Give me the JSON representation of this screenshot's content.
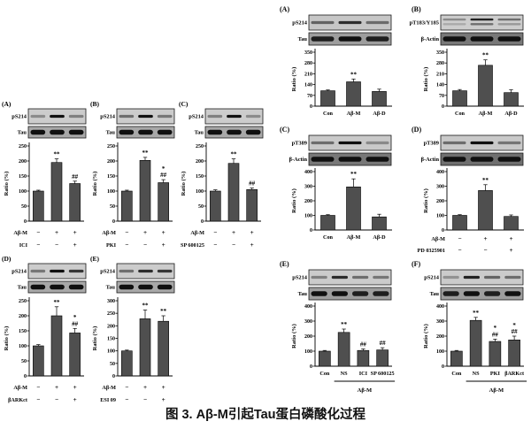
{
  "figure": {
    "caption": "图 3. Aβ-M引起Tau蛋白磷酸化过程"
  },
  "colors": {
    "bar": "#4f4f4f",
    "band": "#101010",
    "axis": "#000000"
  },
  "chart_data": [
    {
      "id": "left-A",
      "block": "left",
      "size": "L",
      "type": "bar",
      "label": "(A)",
      "blots": [
        {
          "name": "pS214",
          "bg": "#cccccc",
          "bands": [
            0.35,
            1,
            0.4
          ],
          "thick": false
        },
        {
          "name": "Tau",
          "bg": "#a8a8a8",
          "bands": [
            1,
            1,
            1
          ],
          "thick": true
        }
      ],
      "ylabel": "Ratio (%)",
      "ymax": 250,
      "ystep": 50,
      "values": [
        100,
        195,
        125
      ],
      "errors": [
        3,
        12,
        8
      ],
      "annotations": [
        [],
        [
          "**"
        ],
        [
          "##"
        ]
      ],
      "treatments": [
        {
          "label": "Aβ-M",
          "symbols": [
            "−",
            "+",
            "+"
          ]
        },
        {
          "label": "ICI",
          "symbols": [
            "−",
            "−",
            "+"
          ]
        }
      ]
    },
    {
      "id": "left-B",
      "block": "left",
      "size": "L",
      "type": "bar",
      "label": "(B)",
      "blots": [
        {
          "name": "pS214",
          "bg": "#cccccc",
          "bands": [
            0.5,
            1,
            0.45
          ],
          "thick": false
        },
        {
          "name": "Tau",
          "bg": "#a8a8a8",
          "bands": [
            1,
            1,
            1
          ],
          "thick": true
        }
      ],
      "ylabel": "Ratio (%)",
      "ymax": 250,
      "ystep": 50,
      "values": [
        100,
        202,
        128
      ],
      "errors": [
        3,
        10,
        10
      ],
      "annotations": [
        [],
        [
          "**"
        ],
        [
          "*",
          "##"
        ]
      ],
      "treatments": [
        {
          "label": "Aβ-M",
          "symbols": [
            "−",
            "+",
            "+"
          ]
        },
        {
          "label": "PKI",
          "symbols": [
            "−",
            "−",
            "+"
          ]
        }
      ]
    },
    {
      "id": "left-C",
      "block": "left",
      "size": "L",
      "type": "bar",
      "label": "(C)",
      "blots": [
        {
          "name": "pS214",
          "bg": "#cccccc",
          "bands": [
            0.4,
            1,
            0.35
          ],
          "thick": false
        },
        {
          "name": "Tau",
          "bg": "#a8a8a8",
          "bands": [
            1,
            1,
            1
          ],
          "thick": true
        }
      ],
      "ylabel": "Ratio (%)",
      "ymax": 250,
      "ystep": 50,
      "values": [
        100,
        192,
        105
      ],
      "errors": [
        4,
        15,
        5
      ],
      "annotations": [
        [],
        [
          "**"
        ],
        [
          "##"
        ]
      ],
      "treatments": [
        {
          "label": "Aβ-M",
          "symbols": [
            "−",
            "+",
            "+"
          ]
        },
        {
          "label": "SP 600125",
          "symbols": [
            "−",
            "−",
            "+"
          ]
        }
      ]
    },
    {
      "id": "left-D",
      "block": "left",
      "size": "L",
      "type": "bar",
      "label": "(D)",
      "blots": [
        {
          "name": "pS214",
          "bg": "#cccccc",
          "bands": [
            0.45,
            1,
            0.8
          ],
          "thick": false
        },
        {
          "name": "Tau",
          "bg": "#a8a8a8",
          "bands": [
            1,
            1,
            1
          ],
          "thick": true
        }
      ],
      "ylabel": "Ratio (%)",
      "ymax": 250,
      "ystep": 50,
      "values": [
        100,
        200,
        143
      ],
      "errors": [
        4,
        30,
        15
      ],
      "annotations": [
        [],
        [
          "**"
        ],
        [
          "*",
          "##"
        ]
      ],
      "treatments": [
        {
          "label": "Aβ-M",
          "symbols": [
            "−",
            "+",
            "+"
          ]
        },
        {
          "label": "βARKct",
          "symbols": [
            "−",
            "−",
            "+"
          ]
        }
      ]
    },
    {
      "id": "left-E",
      "block": "left",
      "size": "L",
      "type": "bar",
      "label": "(E)",
      "blots": [
        {
          "name": "pS214",
          "bg": "#cccccc",
          "bands": [
            0.5,
            0.85,
            0.8
          ],
          "thick": false
        },
        {
          "name": "Tau",
          "bg": "#a8a8a8",
          "bands": [
            1,
            1,
            1
          ],
          "thick": true
        }
      ],
      "ylabel": "Ratio (%)",
      "ymax": 300,
      "ystep": 50,
      "values": [
        100,
        228,
        218
      ],
      "errors": [
        3,
        35,
        22
      ],
      "annotations": [
        [],
        [
          "**"
        ],
        [
          "**"
        ]
      ],
      "treatments": [
        {
          "label": "Aβ-M",
          "symbols": [
            "−",
            "+",
            "+"
          ]
        },
        {
          "label": "ESI 09",
          "symbols": [
            "−",
            "−",
            "+"
          ]
        }
      ]
    },
    {
      "id": "right-A",
      "block": "right",
      "size": "R1",
      "type": "bar",
      "label": "(A)",
      "blots": [
        {
          "name": "pS214",
          "bg": "#c6c6c6",
          "bands": [
            0.55,
            0.85,
            0.5
          ],
          "thick": false
        },
        {
          "name": "Tau",
          "bg": "#9e9e9e",
          "bands": [
            0.9,
            1,
            0.9
          ],
          "thick": true
        }
      ],
      "ylabel": "Ratio (%)",
      "ymax": 350,
      "ystep": 70,
      "categories": [
        "Con",
        "Aβ-M",
        "Aβ-D"
      ],
      "values": [
        100,
        158,
        95
      ],
      "errors": [
        5,
        18,
        15
      ],
      "annotations": [
        [],
        [
          "**"
        ],
        []
      ]
    },
    {
      "id": "right-B",
      "block": "right",
      "size": "R1",
      "type": "bar",
      "label": "(B)",
      "blots": [
        {
          "name": "pT183/Y185",
          "bg": "#cdcdcd",
          "bands": [
            0.35,
            0.9,
            0.5
          ],
          "thick": false,
          "double": true
        },
        {
          "name": "β-Actin",
          "bg": "#787878",
          "bands": [
            1,
            1,
            1
          ],
          "thick": true
        }
      ],
      "ylabel": "Ratio (%)",
      "ymax": 350,
      "ystep": 70,
      "categories": [
        "Con",
        "Aβ-M",
        "Aβ-D"
      ],
      "values": [
        100,
        265,
        88
      ],
      "errors": [
        8,
        35,
        18
      ],
      "annotations": [
        [],
        [
          "**"
        ],
        []
      ]
    },
    {
      "id": "right-C",
      "block": "right",
      "size": "R2",
      "type": "bar",
      "label": "(C)",
      "blots": [
        {
          "name": "pT389",
          "bg": "#c9c9c9",
          "bands": [
            0.5,
            1,
            0.35
          ],
          "thick": false
        },
        {
          "name": "β-Actin",
          "bg": "#787878",
          "bands": [
            1,
            1,
            1
          ],
          "thick": true
        }
      ],
      "ylabel": "Ratio (%)",
      "ymax": 400,
      "ystep": 100,
      "categories": [
        "Con",
        "Aβ-M",
        "Aβ-D"
      ],
      "values": [
        100,
        295,
        90
      ],
      "errors": [
        5,
        55,
        18
      ],
      "annotations": [
        [],
        [
          "**"
        ],
        []
      ]
    },
    {
      "id": "right-D",
      "block": "right",
      "size": "R2",
      "type": "bar",
      "label": "(D)",
      "blots": [
        {
          "name": "pT389",
          "bg": "#c9c9c9",
          "bands": [
            0.5,
            1,
            0.45
          ],
          "thick": false
        },
        {
          "name": "β-Actin",
          "bg": "#6f6f6f",
          "bands": [
            1,
            1,
            1
          ],
          "thick": true
        }
      ],
      "ylabel": "Ratio (%)",
      "ymax": 400,
      "ystep": 100,
      "values": [
        100,
        270,
        93
      ],
      "errors": [
        5,
        40,
        10
      ],
      "annotations": [
        [],
        [
          "**"
        ],
        []
      ],
      "treatments": [
        {
          "label": "Aβ-M",
          "symbols": [
            "−",
            "+",
            "+"
          ]
        },
        {
          "label": "PD 0325901",
          "symbols": [
            "−",
            "−",
            "+"
          ]
        }
      ]
    },
    {
      "id": "right-E",
      "block": "right",
      "size": "R3",
      "type": "bar",
      "label": "(E)",
      "blots": [
        {
          "name": "pS214",
          "bg": "#cbcbcb",
          "bands": [
            0.4,
            0.85,
            0.5,
            0.45
          ],
          "thick": false
        },
        {
          "name": "Tau",
          "bg": "#9e9e9e",
          "bands": [
            1,
            1,
            0.9,
            0.9
          ],
          "thick": true
        }
      ],
      "ylabel": "Ratio (%)",
      "ymax": 400,
      "ystep": 100,
      "categories": [
        "Con",
        "NS",
        "ICI",
        "SP 600125"
      ],
      "values": [
        100,
        225,
        105,
        108
      ],
      "errors": [
        5,
        22,
        10,
        15
      ],
      "annotations": [
        [],
        [
          "**"
        ],
        [
          "##"
        ],
        [
          "##"
        ]
      ],
      "bracket": {
        "label": "Aβ-M",
        "from": 1,
        "to": 3
      }
    },
    {
      "id": "right-F",
      "block": "right",
      "size": "R3",
      "type": "bar",
      "label": "(F)",
      "blots": [
        {
          "name": "pS214",
          "bg": "#cbcbcb",
          "bands": [
            0.3,
            0.9,
            0.55,
            0.5
          ],
          "thick": false
        },
        {
          "name": "Tau",
          "bg": "#9e9e9e",
          "bands": [
            0.9,
            1,
            0.9,
            1
          ],
          "thick": true
        }
      ],
      "ylabel": "Ratio (%)",
      "ymax": 400,
      "ystep": 100,
      "categories": [
        "Con",
        "NS",
        "PKI",
        "βARKct"
      ],
      "values": [
        100,
        305,
        165,
        175
      ],
      "errors": [
        5,
        20,
        15,
        25
      ],
      "annotations": [
        [],
        [
          "**"
        ],
        [
          "*",
          "##"
        ],
        [
          "*",
          "##"
        ]
      ],
      "bracket": {
        "label": "Aβ-M",
        "from": 1,
        "to": 3
      }
    }
  ]
}
